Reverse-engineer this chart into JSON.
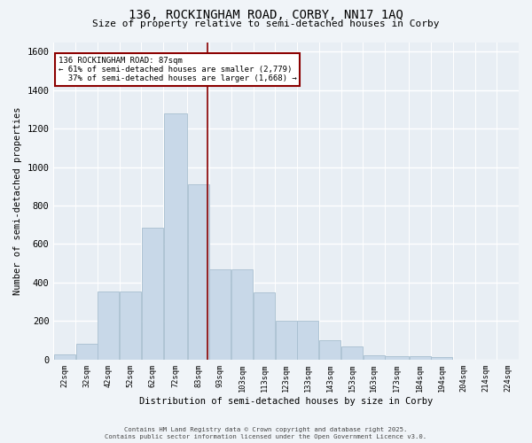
{
  "title_line1": "136, ROCKINGHAM ROAD, CORBY, NN17 1AQ",
  "title_line2": "Size of property relative to semi-detached houses in Corby",
  "xlabel": "Distribution of semi-detached houses by size in Corby",
  "ylabel": "Number of semi-detached properties",
  "bar_labels": [
    "22sqm",
    "32sqm",
    "42sqm",
    "52sqm",
    "62sqm",
    "72sqm",
    "83sqm",
    "93sqm",
    "103sqm",
    "113sqm",
    "123sqm",
    "133sqm",
    "143sqm",
    "153sqm",
    "163sqm",
    "173sqm",
    "184sqm",
    "194sqm",
    "204sqm",
    "214sqm",
    "224sqm"
  ],
  "bar_values": [
    25,
    80,
    355,
    355,
    685,
    1280,
    910,
    470,
    470,
    350,
    200,
    200,
    100,
    65,
    20,
    15,
    15,
    10,
    0,
    0,
    0
  ],
  "bar_color": "#c8d8e8",
  "bar_edgecolor": "#a8bfd0",
  "property_label": "136 ROCKINGHAM ROAD: 87sqm",
  "pct_smaller": 61,
  "count_smaller": 2779,
  "pct_larger": 37,
  "count_larger": 1668,
  "vline_x": 87,
  "vline_color": "#8b0000",
  "annotation_box_edgecolor": "#8b0000",
  "ylim": [
    0,
    1650
  ],
  "yticks": [
    0,
    200,
    400,
    600,
    800,
    1000,
    1200,
    1400,
    1600
  ],
  "background_color": "#e8eef4",
  "grid_color": "#ffffff",
  "fig_background": "#f0f4f8",
  "footer_line1": "Contains HM Land Registry data © Crown copyright and database right 2025.",
  "footer_line2": "Contains public sector information licensed under the Open Government Licence v3.0.",
  "bin_edges": [
    17,
    27,
    37,
    47,
    57,
    67,
    78,
    88,
    98,
    108,
    118,
    128,
    138,
    148,
    158,
    168,
    179,
    189,
    199,
    209,
    219,
    229
  ]
}
